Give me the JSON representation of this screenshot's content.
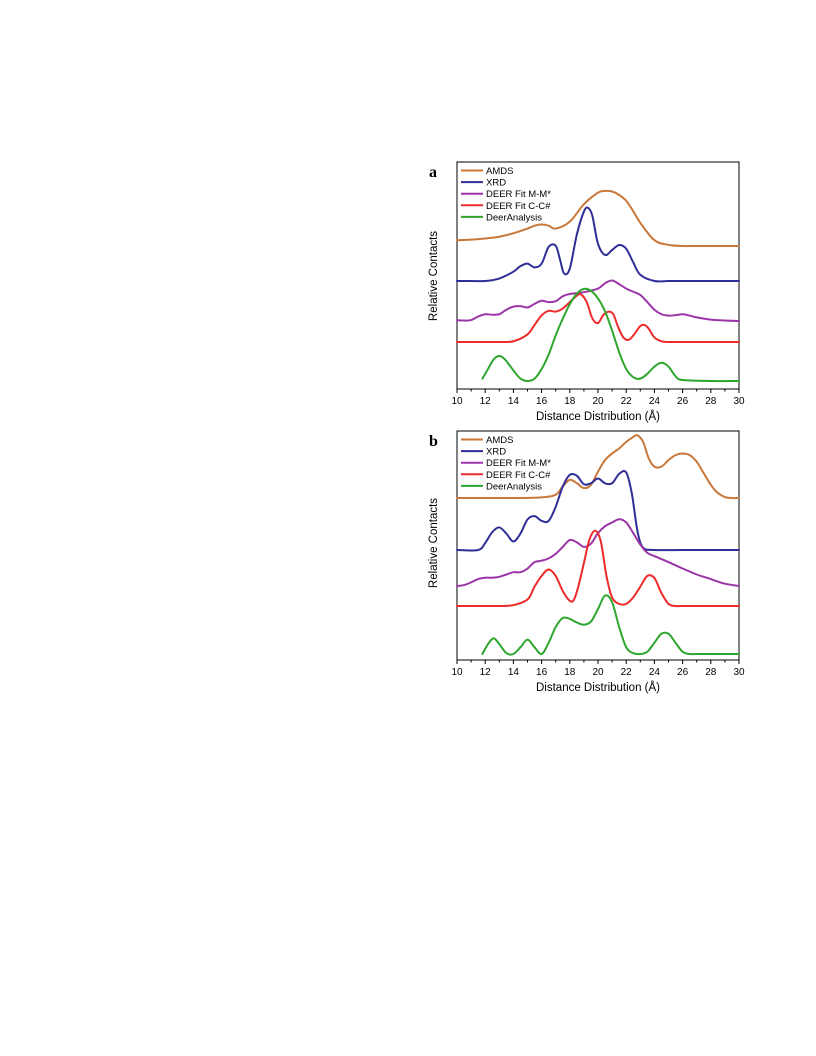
{
  "chart_data": [
    {
      "panel_label": "a",
      "type": "line",
      "xlabel": "Distance Distribution (Å)",
      "ylabel": "Relative Contacts",
      "xlim": [
        10,
        30
      ],
      "xticks": [
        "10",
        "12",
        "14",
        "16",
        "18",
        "20",
        "22",
        "24",
        "26",
        "28",
        "30"
      ],
      "legend_position": "top-left",
      "series": [
        {
          "name": "AMDS",
          "color": "#c8783a",
          "x": [
            10,
            11,
            12,
            13,
            14,
            15,
            15.5,
            16,
            16.5,
            17,
            18,
            19,
            20,
            20.5,
            21,
            21.5,
            22,
            22.5,
            23,
            24,
            25,
            26,
            27,
            28,
            29,
            30
          ],
          "y": [
            0.1,
            0.11,
            0.13,
            0.16,
            0.22,
            0.3,
            0.35,
            0.37,
            0.35,
            0.3,
            0.42,
            0.72,
            0.92,
            0.95,
            0.94,
            0.88,
            0.78,
            0.6,
            0.4,
            0.1,
            0.02,
            0.0,
            0.0,
            0.0,
            0.0,
            0.0
          ]
        },
        {
          "name": "XRD",
          "color": "#2e2e96",
          "x": [
            10,
            11,
            12,
            13,
            14,
            14.5,
            15,
            15.5,
            16,
            16.5,
            17,
            17.3,
            17.6,
            18,
            18.5,
            19,
            19.3,
            19.6,
            20,
            20.5,
            21,
            21.5,
            22,
            22.5,
            23,
            24,
            25,
            26,
            28,
            30
          ],
          "y": [
            0.0,
            0.0,
            0.0,
            0.04,
            0.15,
            0.24,
            0.28,
            0.22,
            0.28,
            0.55,
            0.57,
            0.35,
            0.12,
            0.2,
            0.75,
            1.12,
            1.18,
            1.05,
            0.6,
            0.42,
            0.5,
            0.58,
            0.52,
            0.3,
            0.1,
            0.0,
            0.0,
            0.0,
            0.0,
            0.0
          ]
        },
        {
          "name": "DEER Fit M-M*",
          "color": "#9b35a8",
          "x": [
            10,
            10.5,
            11,
            11.5,
            12,
            12.5,
            13,
            13.5,
            14,
            14.5,
            15,
            15.5,
            16,
            16.5,
            17,
            17.5,
            18,
            19,
            20,
            20.5,
            21,
            21.5,
            22,
            22.5,
            23,
            23.5,
            24,
            24.5,
            25,
            25.5,
            26,
            26.5,
            27,
            28,
            29,
            30
          ],
          "y": [
            0.02,
            0.01,
            0.02,
            0.1,
            0.15,
            0.14,
            0.15,
            0.25,
            0.32,
            0.33,
            0.3,
            0.38,
            0.45,
            0.42,
            0.44,
            0.55,
            0.6,
            0.64,
            0.72,
            0.84,
            0.9,
            0.82,
            0.72,
            0.65,
            0.58,
            0.42,
            0.25,
            0.15,
            0.12,
            0.13,
            0.15,
            0.12,
            0.08,
            0.03,
            0.01,
            0.0
          ]
        },
        {
          "name": "DEER Fit C-C#",
          "color": "#ee2a2a",
          "x": [
            10,
            12,
            13,
            14,
            15,
            15.5,
            16,
            16.5,
            17,
            17.5,
            18,
            18.5,
            18.8,
            19.2,
            19.6,
            20,
            20.4,
            20.8,
            21.1,
            21.4,
            21.8,
            22.2,
            22.6,
            23,
            23.3,
            23.6,
            24,
            24.5,
            25,
            26,
            28,
            30
          ],
          "y": [
            0.0,
            0.0,
            0.0,
            0.02,
            0.2,
            0.45,
            0.7,
            0.82,
            0.8,
            0.88,
            1.05,
            1.22,
            1.25,
            1.05,
            0.62,
            0.5,
            0.72,
            0.8,
            0.72,
            0.42,
            0.12,
            0.06,
            0.22,
            0.42,
            0.45,
            0.35,
            0.12,
            0.02,
            0.0,
            0.0,
            0.0,
            0.0
          ]
        },
        {
          "name": "DeerAnalysis",
          "color": "#2ea62e",
          "x": [
            11.8,
            12.2,
            12.6,
            13,
            13.4,
            14,
            14.5,
            15,
            15.5,
            16,
            16.5,
            17,
            17.5,
            18,
            18.5,
            19,
            19.5,
            20,
            20.5,
            21,
            21.5,
            22,
            22.5,
            23,
            23.5,
            24,
            24.5,
            25,
            25.5,
            26,
            28,
            30
          ],
          "y": [
            0.05,
            0.25,
            0.45,
            0.52,
            0.45,
            0.22,
            0.05,
            0.0,
            0.05,
            0.25,
            0.55,
            0.95,
            1.3,
            1.6,
            1.82,
            1.92,
            1.88,
            1.72,
            1.45,
            1.05,
            0.6,
            0.25,
            0.08,
            0.05,
            0.15,
            0.3,
            0.38,
            0.3,
            0.1,
            0.02,
            0.0,
            0.0
          ]
        }
      ]
    },
    {
      "panel_label": "b",
      "type": "line",
      "xlabel": "Distance Distribution (Å)",
      "ylabel": "Relative Contacts",
      "xlim": [
        10,
        30
      ],
      "xticks": [
        "10",
        "12",
        "14",
        "16",
        "18",
        "20",
        "22",
        "24",
        "26",
        "28",
        "30"
      ],
      "legend_position": "top-left",
      "series": [
        {
          "name": "AMDS",
          "color": "#c8783a",
          "x": [
            10,
            12,
            14,
            16,
            17,
            17.5,
            18,
            18.5,
            19,
            19.5,
            20,
            20.5,
            21,
            21.5,
            22,
            22.5,
            22.8,
            23.2,
            23.6,
            24,
            24.5,
            25,
            25.5,
            26,
            26.5,
            27,
            27.5,
            28,
            28.5,
            29,
            29.5,
            30
          ],
          "y": [
            0.0,
            0.0,
            0.0,
            0.02,
            0.1,
            0.35,
            0.55,
            0.45,
            0.3,
            0.4,
            0.8,
            1.15,
            1.35,
            1.5,
            1.7,
            1.85,
            1.9,
            1.7,
            1.2,
            0.95,
            0.95,
            1.15,
            1.3,
            1.35,
            1.3,
            1.1,
            0.75,
            0.4,
            0.15,
            0.03,
            0.0,
            0.0
          ]
        },
        {
          "name": "XRD",
          "color": "#2e2e96",
          "x": [
            10,
            11.5,
            12,
            12.5,
            13,
            13.5,
            14,
            14.5,
            15,
            15.5,
            16,
            16.5,
            17,
            17.5,
            18,
            18.5,
            19,
            19.5,
            20,
            20.5,
            21,
            21.5,
            22,
            22.4,
            22.8,
            23.2,
            24,
            26,
            28,
            30
          ],
          "y": [
            0.0,
            0.0,
            0.15,
            0.38,
            0.48,
            0.35,
            0.18,
            0.35,
            0.65,
            0.72,
            0.62,
            0.62,
            0.92,
            1.35,
            1.6,
            1.58,
            1.4,
            1.42,
            1.52,
            1.42,
            1.42,
            1.62,
            1.65,
            1.2,
            0.4,
            0.05,
            0.0,
            0.0,
            0.0,
            0.0
          ]
        },
        {
          "name": "DEER Fit M-M*",
          "color": "#9b35a8",
          "x": [
            10,
            10.5,
            11,
            11.5,
            12,
            12.5,
            13,
            13.5,
            14,
            14.5,
            15,
            15.5,
            16,
            16.5,
            17,
            17.5,
            18,
            18.5,
            19,
            19.5,
            20,
            20.5,
            21,
            21.5,
            22,
            22.5,
            23,
            23.5,
            24,
            25,
            26,
            27,
            27.5,
            28,
            29,
            30
          ],
          "y": [
            0.0,
            0.02,
            0.08,
            0.15,
            0.18,
            0.18,
            0.2,
            0.25,
            0.3,
            0.3,
            0.38,
            0.52,
            0.55,
            0.6,
            0.7,
            0.85,
            1.0,
            0.95,
            0.85,
            0.92,
            1.15,
            1.3,
            1.38,
            1.45,
            1.38,
            1.15,
            0.9,
            0.72,
            0.65,
            0.52,
            0.38,
            0.25,
            0.2,
            0.15,
            0.05,
            0.0
          ]
        },
        {
          "name": "DEER Fit C-C#",
          "color": "#ee2a2a",
          "x": [
            10,
            11,
            12,
            13,
            14,
            15,
            15.5,
            16,
            16.5,
            17,
            17.5,
            18,
            18.3,
            18.6,
            19,
            19.4,
            19.8,
            20.2,
            20.6,
            21,
            21.5,
            22,
            22.5,
            23,
            23.5,
            24,
            24.5,
            25,
            25.5,
            26,
            28,
            30
          ],
          "y": [
            0.0,
            0.0,
            0.0,
            0.0,
            0.02,
            0.15,
            0.45,
            0.7,
            0.85,
            0.7,
            0.35,
            0.12,
            0.15,
            0.45,
            1.0,
            1.55,
            1.75,
            1.5,
            0.7,
            0.2,
            0.05,
            0.05,
            0.2,
            0.45,
            0.7,
            0.65,
            0.3,
            0.05,
            0.0,
            0.0,
            0.0,
            0.0
          ]
        },
        {
          "name": "DeerAnalysis",
          "color": "#2ea62e",
          "x": [
            11.8,
            12.2,
            12.6,
            13,
            13.5,
            14,
            14.5,
            15,
            15.5,
            16,
            16.5,
            17,
            17.5,
            18,
            18.5,
            19,
            19.5,
            20,
            20.5,
            21,
            21.5,
            22,
            22.5,
            23,
            23.5,
            24,
            24.5,
            25,
            25.5,
            26,
            26.5,
            27,
            28,
            30
          ],
          "y": [
            0.0,
            0.22,
            0.35,
            0.22,
            0.02,
            0.0,
            0.15,
            0.32,
            0.15,
            0.0,
            0.25,
            0.6,
            0.8,
            0.78,
            0.7,
            0.65,
            0.72,
            1.0,
            1.3,
            1.15,
            0.6,
            0.15,
            0.02,
            0.0,
            0.05,
            0.25,
            0.45,
            0.45,
            0.25,
            0.05,
            0.0,
            0.0,
            0.0,
            0.0
          ]
        }
      ]
    }
  ]
}
